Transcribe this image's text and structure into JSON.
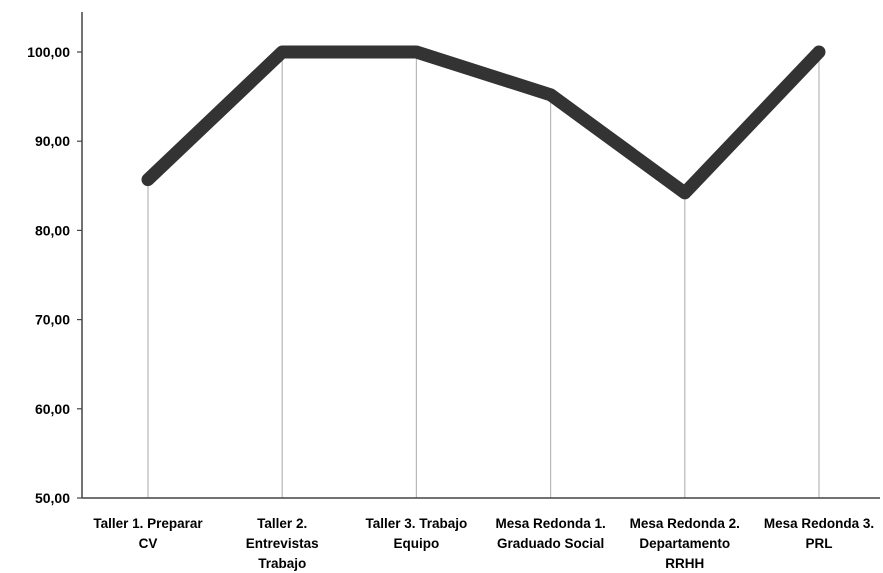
{
  "chart_data": {
    "type": "line",
    "categories": [
      [
        "Taller 1. Preparar",
        "CV"
      ],
      [
        "Taller 2.",
        "Entrevistas",
        "Trabajo"
      ],
      [
        "Taller 3. Trabajo",
        "Equipo"
      ],
      [
        "Mesa Redonda 1.",
        "Graduado Social"
      ],
      [
        "Mesa Redonda 2.",
        "Departamento",
        "RRHH"
      ],
      [
        "Mesa Redonda 3.",
        "PRL"
      ]
    ],
    "series": [
      {
        "values": [
          85.7,
          100.0,
          100.0,
          95.2,
          84.2,
          100.0
        ]
      }
    ],
    "ylim": [
      50,
      100
    ],
    "yticks": [
      "50,00",
      "60,00",
      "70,00",
      "80,00",
      "90,00",
      "100,00"
    ],
    "title": "",
    "xlabel": "",
    "ylabel": "",
    "grid": false,
    "drop_lines": true,
    "colors": {
      "line": "#333333",
      "drop_line": "#b8b8b8",
      "axis": "#444444"
    }
  }
}
